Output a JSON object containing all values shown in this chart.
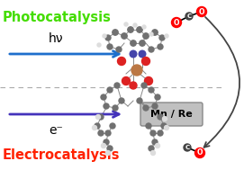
{
  "title_photo": "Photocatalysis",
  "title_electro": "Electrocatalysis",
  "title_photo_color": "#44dd00",
  "title_electro_color": "#ff2200",
  "hv_label": "hν",
  "e_label": "e⁻",
  "mn_re_label": "Mn / Re",
  "arrow_color_hv": "#1e6fcc",
  "arrow_color_e": "#4433bb",
  "dashed_line_color": "#aaaaaa",
  "curve_arrow_color": "#444444",
  "bg_color": "#ffffff",
  "mn_re_box_color": "#888888",
  "mn_re_box_bg": "#c0c0c0",
  "o_color": "#ff0000",
  "c_color": "#333333",
  "bond_color": "#333333",
  "atom_gray": "#808080",
  "atom_white": "#e8e8e8",
  "atom_red": "#ee1111",
  "atom_blue": "#3344bb",
  "atom_bronze": "#cc7744",
  "figw": 2.71,
  "figh": 1.89,
  "dpi": 100
}
